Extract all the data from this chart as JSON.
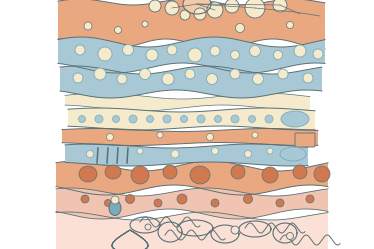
{
  "bg_color": "#ffffff",
  "orange_color": "#EAA880",
  "orange_mid": "#E09870",
  "orange_dark": "#D07850",
  "blue_color": "#A8C8D5",
  "blue_dark": "#7AAABB",
  "cream_color": "#EDD8B0",
  "cream_light": "#F5EACC",
  "peach_light": "#F2CAAA",
  "pink_color": "#F0C4B0",
  "pink_light": "#FAE0D5",
  "outline_color": "#5A7075",
  "figure_size": [
    3.74,
    2.49
  ],
  "dpi": 100
}
